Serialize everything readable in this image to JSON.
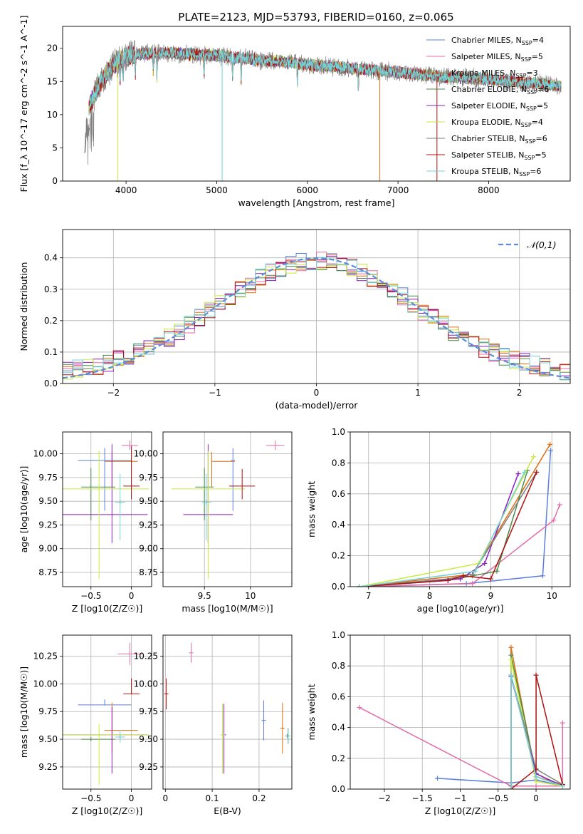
{
  "title": "PLATE=2123, MJD=53793, FIBERID=0160, z=0.065",
  "colors": {
    "blue": "#5b7fd9",
    "pink": "#e26ea8",
    "orange": "#e36e10",
    "green": "#4a8a4a",
    "purple": "#8b1fbf",
    "yellow": "#c8ea3c",
    "gray": "#7f7f7f",
    "red": "#b01010",
    "cyan": "#72d3d8",
    "norm": "#5b8bd9"
  },
  "legend": [
    {
      "label": "Chabrier MILES, N_SSP=4",
      "color": "blue"
    },
    {
      "label": "Salpeter MILES, N_SSP=5",
      "color": "pink"
    },
    {
      "label": "Kroupa MILES, N_SSP=3",
      "color": "orange"
    },
    {
      "label": "Chabrier ELODIE, N_SSP=6",
      "color": "green"
    },
    {
      "label": "Salpeter ELODIE, N_SSP=5",
      "color": "purple"
    },
    {
      "label": "Kroupa ELODIE, N_SSP=4",
      "color": "yellow"
    },
    {
      "label": "Chabrier STELIB, N_SSP=6",
      "color": "gray"
    },
    {
      "label": "Salpeter STELIB, N_SSP=5",
      "color": "red"
    },
    {
      "label": "Kroupa STELIB, N_SSP=6",
      "color": "cyan"
    }
  ],
  "chart_data": [
    {
      "id": "spectrum",
      "type": "line",
      "xlabel": "wavelength [Angstrom, rest frame]",
      "ylabel": "Flux [f_λ 10^-17 erg cm^-2 s^-1 A^-1]",
      "xlim": [
        3300,
        8900
      ],
      "ylim": [
        0,
        23.3
      ],
      "xticks": [
        4000,
        5000,
        6000,
        7000,
        8000
      ],
      "yticks": [
        0,
        5,
        10,
        15,
        20
      ],
      "grid": false,
      "legend_position": "top-right",
      "continuum": {
        "x": [
          3540,
          3620,
          3700,
          3800,
          3900,
          4000,
          4200,
          4400,
          4600,
          4800,
          5000,
          5200,
          5500,
          5800,
          6000,
          6300,
          6600,
          6900,
          7200,
          7500,
          7800,
          8100,
          8400,
          8700,
          8800
        ],
        "y": [
          9.5,
          12.0,
          14.5,
          16.5,
          18.0,
          18.8,
          19.2,
          19.3,
          19.2,
          19.0,
          18.9,
          18.6,
          18.2,
          17.9,
          17.5,
          17.2,
          16.8,
          16.5,
          16.1,
          15.7,
          15.5,
          15.2,
          14.8,
          14.5,
          14.3
        ]
      },
      "spikes": [
        {
          "x": 3910,
          "min": 0.0,
          "series": "yellow"
        },
        {
          "x": 5060,
          "min": 0.0,
          "series": "cyan"
        },
        {
          "x": 6800,
          "min": 0.0,
          "series": "orange"
        },
        {
          "x": 7430,
          "min": 0.0,
          "series": "red"
        }
      ]
    },
    {
      "id": "residuals",
      "type": "histogram",
      "xlabel": "(data-model)/error",
      "ylabel": "Normed distribution",
      "xlim": [
        -2.5,
        2.5
      ],
      "ylim": [
        0,
        0.49
      ],
      "xticks": [
        -2,
        -1,
        0,
        1,
        2
      ],
      "yticks": [
        0.0,
        0.1,
        0.2,
        0.3,
        0.4
      ],
      "grid": true,
      "legend_position": "top-right",
      "normal_label": "𝒩(0,1)",
      "bin_width": 0.1
    },
    {
      "id": "age_vs_Z",
      "type": "errorbar",
      "xlabel": "Z [log10(Z/Z☉)]",
      "ylabel": "age  [log10(age/yr)]",
      "xlim": [
        -0.85,
        0.25
      ],
      "ylim": [
        8.6,
        10.23
      ],
      "xticks": [
        -0.5,
        0.0
      ],
      "yticks": [
        8.75,
        9.0,
        9.25,
        9.5,
        9.75,
        10.0
      ],
      "grid": true,
      "points": [
        {
          "series": "blue",
          "x": -0.33,
          "xerr": [
            0.33,
            0.33
          ],
          "y": 9.93,
          "yerr": [
            0.53,
            0.13
          ]
        },
        {
          "series": "pink",
          "x": -0.02,
          "xerr": [
            0.1,
            0.1
          ],
          "y": 10.09,
          "yerr": [
            0.05,
            0.05
          ]
        },
        {
          "series": "orange",
          "x": -0.24,
          "xerr": [
            0.09,
            0.32
          ],
          "y": 9.92,
          "yerr": [
            0.27,
            0.1
          ]
        },
        {
          "series": "green",
          "x": -0.5,
          "xerr": [
            0.12,
            0.3
          ],
          "y": 9.65,
          "yerr": [
            0.35,
            0.2
          ]
        },
        {
          "series": "purple",
          "x": -0.24,
          "xerr": [
            0.64,
            0.44
          ],
          "y": 9.36,
          "yerr": [
            0.3,
            0.74
          ]
        },
        {
          "series": "yellow",
          "x": -0.4,
          "xerr": [
            0.45,
            0.62
          ],
          "y": 9.63,
          "yerr": [
            0.95,
            0.4
          ]
        },
        {
          "series": "gray",
          "x": -0.14,
          "xerr": [
            0.0,
            0.0
          ],
          "y": 9.49,
          "yerr": [
            0.0,
            0.0
          ]
        },
        {
          "series": "red",
          "x": 0.0,
          "xerr": [
            0.1,
            0.1
          ],
          "y": 9.66,
          "yerr": [
            0.14,
            0.42
          ]
        },
        {
          "series": "cyan",
          "x": -0.14,
          "xerr": [
            0.06,
            0.06
          ],
          "y": 9.49,
          "yerr": [
            0.4,
            0.3
          ]
        }
      ]
    },
    {
      "id": "age_vs_mass",
      "type": "errorbar",
      "xlabel": "mass [log10(M/M☉)]",
      "ylabel": "",
      "xlim": [
        9.05,
        10.45
      ],
      "ylim": [
        8.6,
        10.23
      ],
      "xticks": [
        9.5,
        10.0
      ],
      "yticks": [
        8.75,
        9.0,
        9.25,
        9.5,
        9.75,
        10.0
      ],
      "grid": true,
      "points": [
        {
          "series": "blue",
          "x": 9.81,
          "xerr": [
            0.0,
            0.0
          ],
          "y": 9.93,
          "yerr": [
            0.53,
            0.13
          ]
        },
        {
          "series": "pink",
          "x": 10.27,
          "xerr": [
            0.1,
            0.1
          ],
          "y": 10.09,
          "yerr": [
            0.05,
            0.05
          ]
        },
        {
          "series": "orange",
          "x": 9.58,
          "xerr": [
            0.0,
            0.25
          ],
          "y": 9.92,
          "yerr": [
            0.27,
            0.1
          ]
        },
        {
          "series": "green",
          "x": 9.5,
          "xerr": [
            0.1,
            0.1
          ],
          "y": 9.65,
          "yerr": [
            0.35,
            0.2
          ]
        },
        {
          "series": "purple",
          "x": 9.54,
          "xerr": [
            0.27,
            0.27
          ],
          "y": 9.36,
          "yerr": [
            0.3,
            0.74
          ]
        },
        {
          "series": "yellow",
          "x": 9.54,
          "xerr": [
            0.4,
            0.4
          ],
          "y": 9.63,
          "yerr": [
            0.95,
            0.4
          ]
        },
        {
          "series": "gray",
          "x": 9.52,
          "xerr": [
            0.0,
            0.0
          ],
          "y": 9.49,
          "yerr": [
            0.0,
            0.0
          ]
        },
        {
          "series": "red",
          "x": 9.91,
          "xerr": [
            0.14,
            0.14
          ],
          "y": 9.66,
          "yerr": [
            0.14,
            0.18
          ]
        },
        {
          "series": "cyan",
          "x": 9.52,
          "xerr": [
            0.05,
            0.05
          ],
          "y": 9.49,
          "yerr": [
            0.4,
            0.3
          ]
        }
      ]
    },
    {
      "id": "weight_vs_age",
      "type": "line",
      "xlabel": "age  [log10(age/yr)]",
      "ylabel": "mass weight",
      "xlim": [
        6.7,
        10.3
      ],
      "ylim": [
        0,
        1.0
      ],
      "xticks": [
        7,
        8,
        9,
        10
      ],
      "yticks": [
        0.0,
        0.2,
        0.4,
        0.6,
        0.8,
        1.0
      ],
      "grid": true,
      "series": [
        {
          "name": "blue",
          "x": [
            6.85,
            8.6,
            9.85,
            9.98
          ],
          "y": [
            0.0,
            0.02,
            0.07,
            0.88
          ]
        },
        {
          "name": "pink",
          "x": [
            6.85,
            8.7,
            10.03,
            10.13
          ],
          "y": [
            0.0,
            0.02,
            0.43,
            0.53
          ]
        },
        {
          "name": "orange",
          "x": [
            6.85,
            8.7,
            9.97
          ],
          "y": [
            0.0,
            0.08,
            0.92
          ]
        },
        {
          "name": "green",
          "x": [
            6.85,
            8.3,
            8.7,
            9.1,
            9.6
          ],
          "y": [
            0.0,
            0.04,
            0.07,
            0.1,
            0.75
          ]
        },
        {
          "name": "purple",
          "x": [
            6.85,
            8.5,
            8.9,
            9.45
          ],
          "y": [
            0.0,
            0.05,
            0.15,
            0.73
          ]
        },
        {
          "name": "yellow",
          "x": [
            6.85,
            8.8,
            9.7
          ],
          "y": [
            0.0,
            0.15,
            0.84
          ]
        },
        {
          "name": "gray",
          "x": [
            6.85,
            8.3,
            8.7,
            9.75
          ],
          "y": [
            0.0,
            0.05,
            0.08,
            0.74
          ]
        },
        {
          "name": "red",
          "x": [
            6.85,
            8.3,
            8.55,
            9.0,
            9.75
          ],
          "y": [
            0.0,
            0.04,
            0.07,
            0.05,
            0.74
          ]
        },
        {
          "name": "cyan",
          "x": [
            6.85,
            8.75,
            9.55
          ],
          "y": [
            0.0,
            0.1,
            0.74
          ]
        }
      ]
    },
    {
      "id": "mass_vs_Z",
      "type": "errorbar",
      "xlabel": "Z [log10(Z/Z☉)]",
      "ylabel": "mass [log10(M/M☉)]",
      "xlim": [
        -0.85,
        0.25
      ],
      "ylim": [
        9.05,
        10.44
      ],
      "xticks": [
        -0.5,
        0.0
      ],
      "yticks": [
        9.25,
        9.5,
        9.75,
        10.0,
        10.25
      ],
      "grid": true,
      "points": [
        {
          "series": "blue",
          "x": -0.33,
          "xerr": [
            0.33,
            0.33
          ],
          "y": 9.81,
          "yerr": [
            0.0,
            0.05
          ]
        },
        {
          "series": "pink",
          "x": -0.02,
          "xerr": [
            0.15,
            0.15
          ],
          "y": 10.27,
          "yerr": [
            0.1,
            0.1
          ]
        },
        {
          "series": "orange",
          "x": -0.24,
          "xerr": [
            0.09,
            0.32
          ],
          "y": 9.58,
          "yerr": [
            0.2,
            0.25
          ]
        },
        {
          "series": "green",
          "x": -0.5,
          "xerr": [
            0.12,
            0.3
          ],
          "y": 9.5,
          "yerr": [
            0.0,
            0.0
          ]
        },
        {
          "series": "purple",
          "x": -0.24,
          "xerr": [
            0.64,
            0.44
          ],
          "y": 9.54,
          "yerr": [
            0.35,
            0.25
          ]
        },
        {
          "series": "yellow",
          "x": -0.4,
          "xerr": [
            0.45,
            0.62
          ],
          "y": 9.54,
          "yerr": [
            0.45,
            0.1
          ]
        },
        {
          "series": "gray",
          "x": -0.14,
          "xerr": [
            0.0,
            0.0
          ],
          "y": 9.52,
          "yerr": [
            0.0,
            0.0
          ]
        },
        {
          "series": "red",
          "x": 0.0,
          "xerr": [
            0.1,
            0.1
          ],
          "y": 9.91,
          "yerr": [
            0.0,
            0.14
          ]
        },
        {
          "series": "cyan",
          "x": -0.14,
          "xerr": [
            0.06,
            0.06
          ],
          "y": 9.52,
          "yerr": [
            0.05,
            0.05
          ]
        }
      ]
    },
    {
      "id": "mass_vs_ebv",
      "type": "errorbar",
      "xlabel": "E(B-V)",
      "ylabel": "",
      "xlim": [
        -0.005,
        0.27
      ],
      "ylim": [
        9.05,
        10.44
      ],
      "xticks": [
        0.0,
        0.1,
        0.2
      ],
      "yticks": [
        9.25,
        9.5,
        9.75,
        10.0,
        10.25
      ],
      "grid": true,
      "points": [
        {
          "series": "blue",
          "x": 0.21,
          "xerr": [
            0.0,
            0.0
          ],
          "y": 9.67,
          "yerr": [
            0.18,
            0.18
          ]
        },
        {
          "series": "pink",
          "x": 0.055,
          "xerr": [
            0.0,
            0.0
          ],
          "y": 10.28,
          "yerr": [
            0.09,
            0.09
          ]
        },
        {
          "series": "orange",
          "x": 0.25,
          "xerr": [
            0.0,
            0.0
          ],
          "y": 9.6,
          "yerr": [
            0.23,
            0.23
          ]
        },
        {
          "series": "green",
          "x": 0.262,
          "xerr": [
            0.0,
            0.0
          ],
          "y": 9.53,
          "yerr": [
            0.07,
            0.07
          ]
        },
        {
          "series": "purple",
          "x": 0.125,
          "xerr": [
            0.0,
            0.0
          ],
          "y": 9.54,
          "yerr": [
            0.35,
            0.28
          ]
        },
        {
          "series": "yellow",
          "x": 0.122,
          "xerr": [
            0.0,
            0.0
          ],
          "y": 9.54,
          "yerr": [
            0.35,
            0.28
          ]
        },
        {
          "series": "gray",
          "x": 0.26,
          "xerr": [
            0.0,
            0.0
          ],
          "y": 9.53,
          "yerr": [
            0.0,
            0.0
          ]
        },
        {
          "series": "red",
          "x": 0.002,
          "xerr": [
            0.0,
            0.0
          ],
          "y": 9.91,
          "yerr": [
            0.14,
            0.14
          ]
        },
        {
          "series": "cyan",
          "x": 0.262,
          "xerr": [
            0.0,
            0.0
          ],
          "y": 9.53,
          "yerr": [
            0.06,
            0.06
          ]
        }
      ]
    },
    {
      "id": "weight_vs_Z",
      "type": "line",
      "xlabel": "Z [log10(Z/Z☉)]",
      "ylabel": "mass weight",
      "xlim": [
        -2.45,
        0.45
      ],
      "ylim": [
        0,
        1.0
      ],
      "xticks": [
        -2.0,
        -1.5,
        -1.0,
        -0.5,
        0.0
      ],
      "yticks": [
        0.0,
        0.2,
        0.4,
        0.6,
        0.8,
        1.0
      ],
      "grid": true,
      "series": [
        {
          "name": "blue",
          "x": [
            -1.3,
            -0.33,
            0.0,
            0.35
          ],
          "y": [
            0.07,
            0.04,
            0.06,
            0.02
          ]
        },
        {
          "name": "pink",
          "x": [
            -2.33,
            -0.33,
            0.0,
            0.35,
            0.35
          ],
          "y": [
            0.53,
            0.02,
            0.02,
            0.02,
            0.43
          ]
        },
        {
          "name": "orange",
          "x": [
            -0.33,
            -0.33,
            0.0,
            0.35
          ],
          "y": [
            0.0,
            0.92,
            0.08,
            0.03
          ]
        },
        {
          "name": "green",
          "x": [
            -0.33,
            -0.33,
            0.0,
            0.35
          ],
          "y": [
            0.0,
            0.87,
            0.1,
            0.02
          ]
        },
        {
          "name": "purple",
          "x": [
            -0.33,
            -0.33,
            0.0,
            0.35
          ],
          "y": [
            0.0,
            0.73,
            0.1,
            0.02
          ]
        },
        {
          "name": "yellow",
          "x": [
            -0.33,
            -0.33,
            0.0,
            0.35
          ],
          "y": [
            0.0,
            0.84,
            0.05,
            0.02
          ]
        },
        {
          "name": "gray",
          "x": [
            -0.33,
            -0.33,
            0.0,
            0.35
          ],
          "y": [
            0.02,
            0.74,
            0.13,
            0.03
          ]
        },
        {
          "name": "red",
          "x": [
            -0.33,
            0.0,
            0.0,
            0.35
          ],
          "y": [
            0.0,
            0.13,
            0.74,
            0.03
          ]
        },
        {
          "name": "cyan",
          "x": [
            -0.33,
            -0.33,
            0.0,
            0.35
          ],
          "y": [
            0.0,
            0.74,
            0.08,
            0.02
          ]
        }
      ]
    }
  ]
}
